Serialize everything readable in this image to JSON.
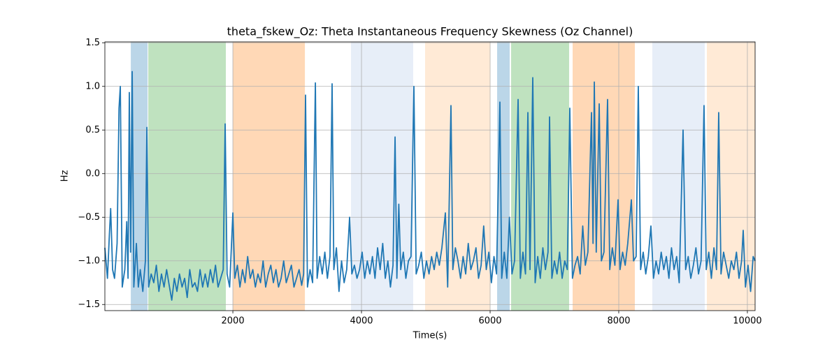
{
  "chart_data": {
    "type": "line",
    "title": "theta_fskew_Oz: Theta Instantaneous Frequency Skewness (Oz Channel)",
    "xlabel": "Time(s)",
    "ylabel": "Hz",
    "color": "#1f77b4",
    "grid": true,
    "xlim": [
      10,
      10120
    ],
    "ylim": [
      -1.57,
      1.51
    ],
    "xticks": [
      2000,
      4000,
      6000,
      8000,
      10000
    ],
    "yticks": [
      {
        "value": -1.5,
        "label": "−1.5"
      },
      {
        "value": -1,
        "label": "−1.0"
      },
      {
        "value": -0.5,
        "label": "−0.5"
      },
      {
        "value": 0,
        "label": "0.0"
      },
      0.5,
      {
        "value": 1,
        "label": "1.0"
      },
      1.5
    ],
    "spans": [
      {
        "start": 413,
        "end": 674,
        "color": "rgba(31,119,180,0.3)"
      },
      {
        "start": 685,
        "end": 1891,
        "color": "rgba(44,160,44,0.3)"
      },
      {
        "start": 2000,
        "end": 3120,
        "color": "rgba(255,127,14,0.3)"
      },
      {
        "start": 3837,
        "end": 4804,
        "color": "rgba(174,199,232,0.3)"
      },
      {
        "start": 4989,
        "end": 6000,
        "color": "rgba(255,187,120,0.3)"
      },
      {
        "start": 6109,
        "end": 6304,
        "color": "rgba(31,119,180,0.3)"
      },
      {
        "start": 6326,
        "end": 7228,
        "color": "rgba(44,160,44,0.3)"
      },
      {
        "start": 7283,
        "end": 8250,
        "color": "rgba(255,127,14,0.3)"
      },
      {
        "start": 8522,
        "end": 9337,
        "color": "rgba(174,199,232,0.3)"
      },
      {
        "start": 9370,
        "end": 10120,
        "color": "rgba(255,187,120,0.3)"
      }
    ],
    "x": [
      10,
      50,
      80,
      100,
      130,
      160,
      200,
      230,
      250,
      280,
      320,
      350,
      370,
      390,
      410,
      435,
      460,
      500,
      530,
      560,
      600,
      640,
      663,
      690,
      730,
      770,
      810,
      850,
      890,
      930,
      970,
      1010,
      1050,
      1090,
      1130,
      1170,
      1210,
      1250,
      1290,
      1330,
      1370,
      1410,
      1450,
      1490,
      1530,
      1570,
      1610,
      1650,
      1690,
      1730,
      1770,
      1810,
      1850,
      1880,
      1910,
      1950,
      2000,
      2030,
      2070,
      2110,
      2150,
      2190,
      2230,
      2270,
      2310,
      2350,
      2390,
      2430,
      2470,
      2510,
      2550,
      2590,
      2630,
      2670,
      2710,
      2750,
      2790,
      2830,
      2870,
      2910,
      2950,
      2990,
      3030,
      3070,
      3100,
      3130,
      3160,
      3200,
      3240,
      3283,
      3310,
      3350,
      3390,
      3430,
      3470,
      3510,
      3543,
      3570,
      3610,
      3650,
      3690,
      3730,
      3770,
      3815,
      3850,
      3890,
      3930,
      3970,
      4010,
      4050,
      4090,
      4130,
      4170,
      4210,
      4250,
      4290,
      4330,
      4370,
      4410,
      4450,
      4490,
      4522,
      4550,
      4580,
      4610,
      4650,
      4690,
      4730,
      4770,
      4815,
      4850,
      4890,
      4930,
      4970,
      5010,
      5050,
      5090,
      5130,
      5170,
      5210,
      5250,
      5304,
      5340,
      5391,
      5420,
      5460,
      5500,
      5540,
      5580,
      5620,
      5660,
      5700,
      5740,
      5780,
      5820,
      5860,
      5900,
      5940,
      5980,
      6020,
      6060,
      6100,
      6152,
      6180,
      6220,
      6260,
      6300,
      6340,
      6380,
      6435,
      6470,
      6510,
      6550,
      6587,
      6620,
      6663,
      6700,
      6740,
      6780,
      6820,
      6860,
      6900,
      6924,
      6960,
      7000,
      7040,
      7080,
      7120,
      7160,
      7200,
      7239,
      7280,
      7320,
      7360,
      7400,
      7440,
      7480,
      7520,
      7576,
      7600,
      7620,
      7650,
      7696,
      7730,
      7770,
      7826,
      7860,
      7900,
      7940,
      7989,
      8020,
      8060,
      8100,
      8140,
      8196,
      8230,
      8270,
      8304,
      8340,
      8380,
      8420,
      8460,
      8500,
      8540,
      8580,
      8620,
      8660,
      8700,
      8740,
      8780,
      8820,
      8860,
      8900,
      8940,
      9000,
      9040,
      9080,
      9120,
      9160,
      9200,
      9240,
      9280,
      9326,
      9360,
      9400,
      9440,
      9480,
      9520,
      9554,
      9590,
      9630,
      9670,
      9710,
      9750,
      9790,
      9830,
      9870,
      9910,
      9935,
      9970,
      10010,
      10050,
      10090,
      10120
    ],
    "values": [
      -0.85,
      -1.2,
      -0.7,
      -0.4,
      -1.1,
      -1.2,
      -0.8,
      0.75,
      1.0,
      -1.3,
      -1.1,
      -0.55,
      -1.2,
      0.93,
      -0.9,
      1.17,
      -1.3,
      -0.8,
      -1.3,
      -1.1,
      -1.35,
      -1.0,
      0.53,
      -1.3,
      -1.15,
      -1.25,
      -1.05,
      -1.35,
      -1.15,
      -1.3,
      -1.1,
      -1.28,
      -1.45,
      -1.2,
      -1.35,
      -1.15,
      -1.3,
      -1.2,
      -1.42,
      -1.1,
      -1.3,
      -1.25,
      -1.35,
      -1.1,
      -1.3,
      -1.15,
      -1.3,
      -1.1,
      -1.25,
      -1.05,
      -1.3,
      -1.2,
      -1.1,
      0.57,
      -1.15,
      -1.3,
      -0.45,
      -1.2,
      -1.05,
      -1.3,
      -1.1,
      -1.25,
      -0.95,
      -1.2,
      -1.1,
      -1.3,
      -1.15,
      -1.25,
      -1.0,
      -1.3,
      -1.15,
      -1.05,
      -1.25,
      -1.1,
      -1.3,
      -1.2,
      -1.0,
      -1.25,
      -1.15,
      -1.05,
      -1.3,
      -1.2,
      -1.1,
      -1.28,
      -1.15,
      0.9,
      -1.3,
      -1.1,
      -1.25,
      1.04,
      -1.2,
      -0.95,
      -1.15,
      -0.9,
      -1.2,
      -0.95,
      1.03,
      -1.1,
      -0.85,
      -1.35,
      -1.0,
      -1.25,
      -1.1,
      -0.5,
      -1.15,
      -1.05,
      -1.2,
      -1.1,
      -0.9,
      -1.2,
      -1.0,
      -1.15,
      -0.95,
      -1.2,
      -0.85,
      -1.1,
      -0.8,
      -1.2,
      -1.0,
      -1.3,
      -1.05,
      0.42,
      -1.2,
      -0.35,
      -1.1,
      -0.9,
      -1.2,
      -1.0,
      -0.95,
      1.0,
      -1.15,
      -1.05,
      -0.9,
      -1.2,
      -1.0,
      -1.15,
      -0.95,
      -1.1,
      -0.9,
      -1.05,
      -0.85,
      -0.45,
      -1.3,
      0.78,
      -1.1,
      -0.85,
      -1.0,
      -1.2,
      -0.95,
      -1.15,
      -0.8,
      -1.1,
      -1.0,
      -0.85,
      -1.2,
      -1.05,
      -0.6,
      -1.1,
      -0.9,
      -1.25,
      -0.95,
      -1.15,
      0.82,
      -1.2,
      -0.9,
      -1.2,
      -0.5,
      -1.15,
      -1.0,
      0.85,
      -1.2,
      -0.9,
      -1.15,
      0.7,
      -1.1,
      1.1,
      -1.25,
      -0.95,
      -1.2,
      -0.85,
      -1.1,
      -0.9,
      0.65,
      -1.2,
      -1.0,
      -1.15,
      -0.9,
      -1.2,
      -1.0,
      -1.1,
      0.75,
      -1.2,
      -1.05,
      -0.95,
      -1.15,
      -0.6,
      -1.05,
      -0.9,
      0.7,
      -0.8,
      1.05,
      -0.9,
      0.8,
      -1.0,
      -0.9,
      0.85,
      -1.1,
      -0.85,
      -1.05,
      -0.3,
      -1.1,
      -0.9,
      -1.05,
      -0.8,
      -0.3,
      -1.0,
      -0.95,
      1.0,
      -1.1,
      -0.9,
      -1.15,
      -0.95,
      -0.6,
      -1.2,
      -1.0,
      -1.15,
      -0.9,
      -1.1,
      -0.95,
      -1.2,
      -0.85,
      -1.1,
      -0.95,
      -1.25,
      0.5,
      -1.1,
      -0.95,
      -1.2,
      -1.05,
      -0.85,
      -1.15,
      -1.0,
      0.78,
      -1.1,
      -0.9,
      -1.2,
      -0.85,
      -1.1,
      0.7,
      -1.15,
      -0.9,
      -1.05,
      -1.2,
      -1.0,
      -1.1,
      -0.9,
      -1.2,
      -1.0,
      -0.65,
      -1.3,
      -1.05,
      -1.35,
      -0.95,
      -1.0
    ]
  }
}
